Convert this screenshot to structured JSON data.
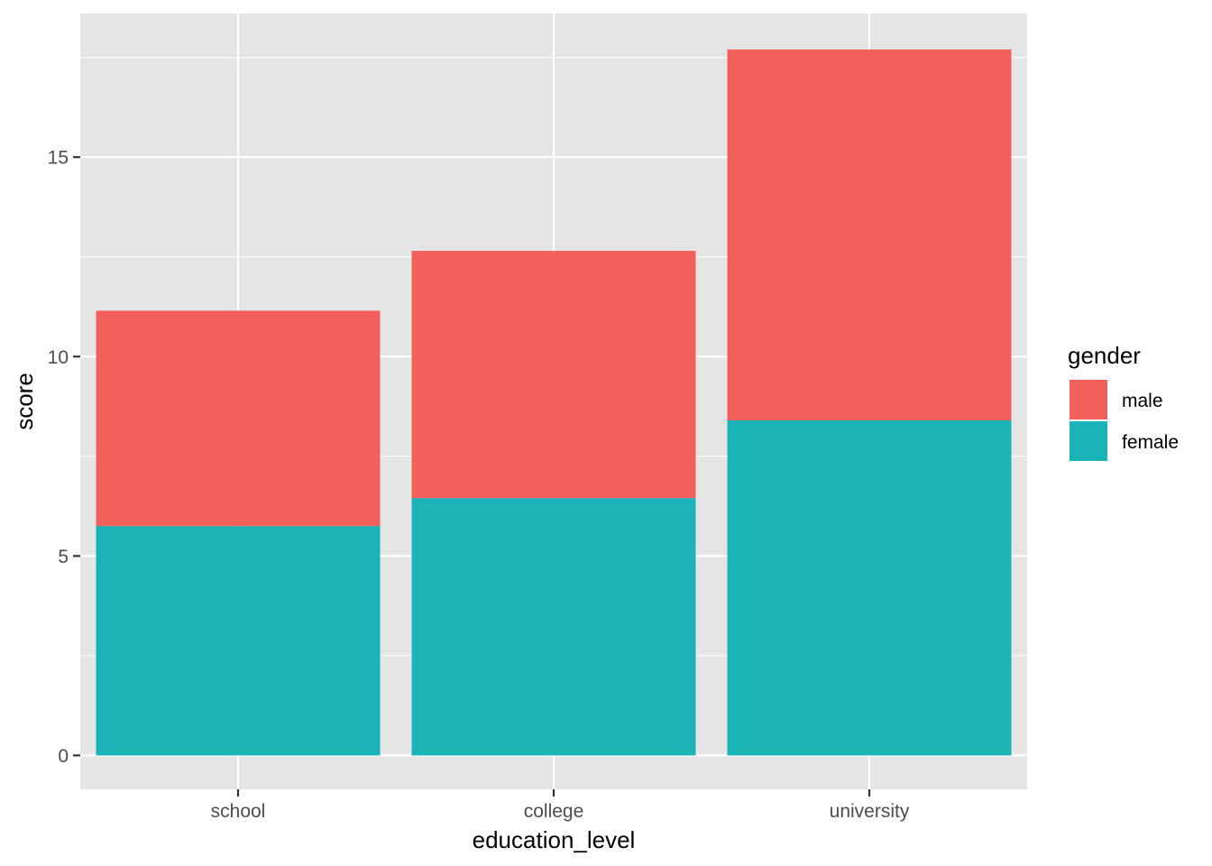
{
  "chart_data": {
    "type": "bar",
    "stacked": true,
    "categories": [
      "school",
      "college",
      "university"
    ],
    "series": [
      {
        "name": "female",
        "values": [
          5.75,
          6.45,
          8.4
        ],
        "color": "#1AB3B8"
      },
      {
        "name": "male",
        "values": [
          5.4,
          6.2,
          9.3
        ],
        "color": "#F2605C"
      }
    ],
    "xlabel": "education_level",
    "ylabel": "score",
    "ylim": [
      -0.85,
      18.6
    ],
    "yticks": [
      0,
      5,
      10,
      15
    ],
    "ytick_labels": [
      "0",
      "5",
      "10",
      "15"
    ],
    "grid": true,
    "panel_background": "#E5E5E5",
    "legend": {
      "title": "gender",
      "position": "right",
      "items": [
        {
          "label": "male",
          "color": "#F2605C"
        },
        {
          "label": "female",
          "color": "#1AB3B8"
        }
      ]
    }
  }
}
